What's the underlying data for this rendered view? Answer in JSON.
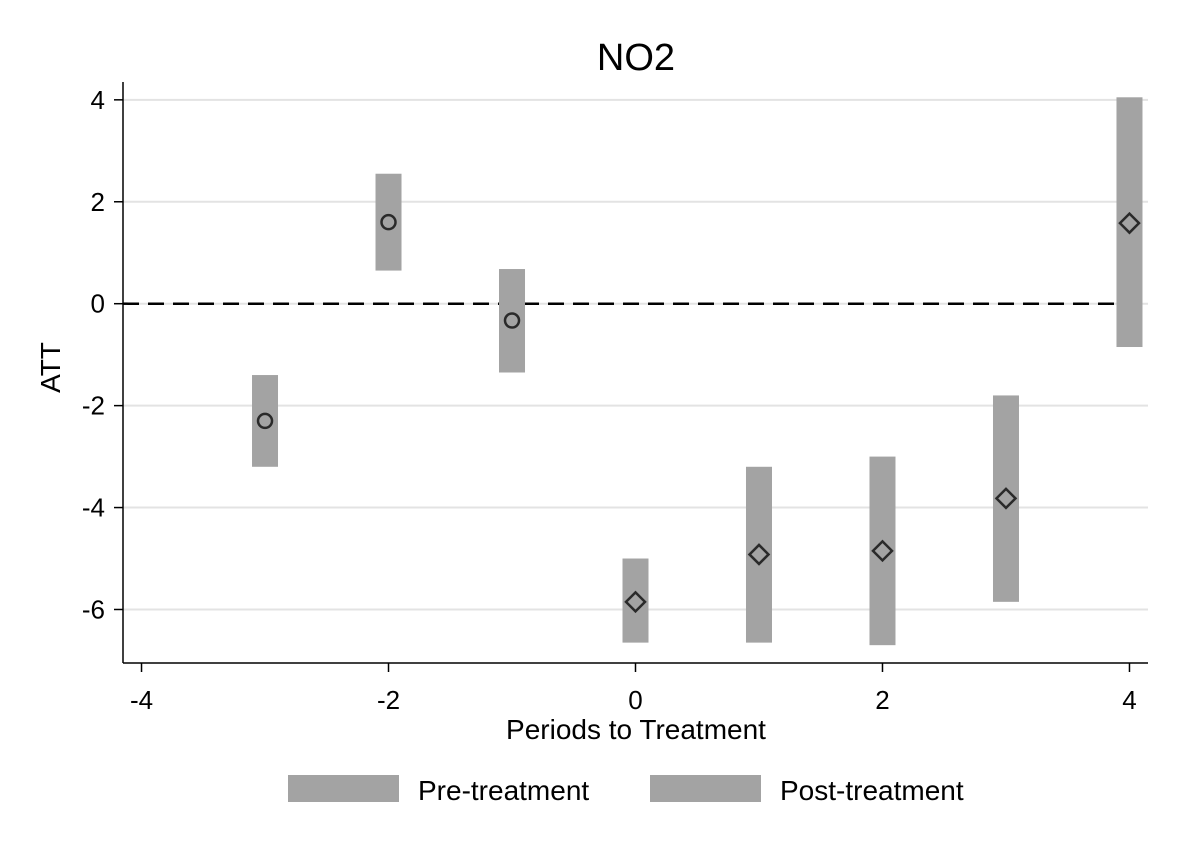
{
  "chart_data": {
    "type": "scatter",
    "title": "NO2",
    "xlabel": "Periods to Treatment",
    "ylabel": "ATT",
    "xlim": [
      -4.15,
      4.15
    ],
    "ylim": [
      -7.05,
      4.35
    ],
    "xticks": [
      -4,
      -2,
      0,
      2,
      4
    ],
    "yticks": [
      -6,
      -4,
      -2,
      0,
      2,
      4
    ],
    "reference_line": {
      "y": 0,
      "style": "dashed"
    },
    "grid": "horizontal",
    "legend_position": "bottom",
    "colors": {
      "interval": "#a3a3a3",
      "marker": "#2a2a2a"
    },
    "series": [
      {
        "name": "Pre-treatment",
        "marker": "circle",
        "points": [
          {
            "x": -3,
            "y": -2.3,
            "lo": -3.2,
            "hi": -1.4
          },
          {
            "x": -2,
            "y": 1.6,
            "lo": 0.65,
            "hi": 2.55
          },
          {
            "x": -1,
            "y": -0.33,
            "lo": -1.35,
            "hi": 0.68
          }
        ]
      },
      {
        "name": "Post-treatment",
        "marker": "diamond",
        "points": [
          {
            "x": 0,
            "y": -5.85,
            "lo": -6.65,
            "hi": -5.0
          },
          {
            "x": 1,
            "y": -4.92,
            "lo": -6.65,
            "hi": -3.2
          },
          {
            "x": 2,
            "y": -4.85,
            "lo": -6.7,
            "hi": -3.0
          },
          {
            "x": 3,
            "y": -3.82,
            "lo": -5.85,
            "hi": -1.8
          },
          {
            "x": 4,
            "y": 1.58,
            "lo": -0.85,
            "hi": 4.05
          }
        ]
      }
    ]
  }
}
